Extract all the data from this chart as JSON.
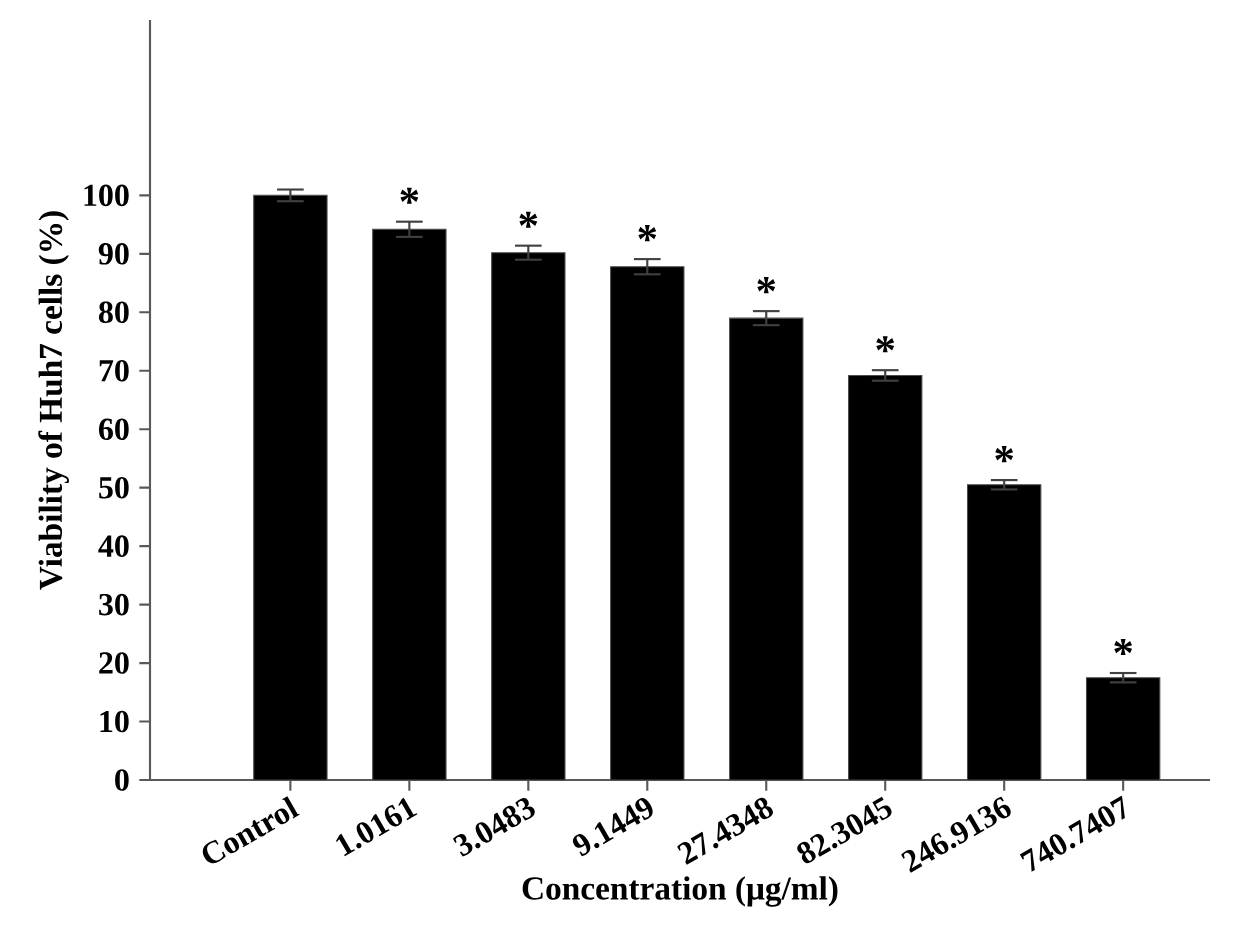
{
  "chart_data": {
    "type": "bar",
    "xlabel": "Concentration (μg/ml)",
    "ylabel": "Viability of Huh7 cells (%)",
    "categories": [
      "Control",
      "1.0161",
      "3.0483",
      "9.1449",
      "27.4348",
      "82.3045",
      "246.9136",
      "740.7407"
    ],
    "values": [
      100,
      94.2,
      90.2,
      87.8,
      79,
      69.2,
      50.5,
      17.5
    ],
    "errors": [
      1,
      1.3,
      1.2,
      1.3,
      1.2,
      0.9,
      0.8,
      0.8
    ],
    "color": "#000000",
    "ylim": [
      0,
      130
    ],
    "yticks": [
      0,
      10,
      20,
      30,
      40,
      50,
      60,
      70,
      80,
      90,
      100
    ],
    "grid": false,
    "annotations": [
      "*",
      "*",
      "*",
      "*",
      "*",
      "*",
      "*"
    ]
  }
}
